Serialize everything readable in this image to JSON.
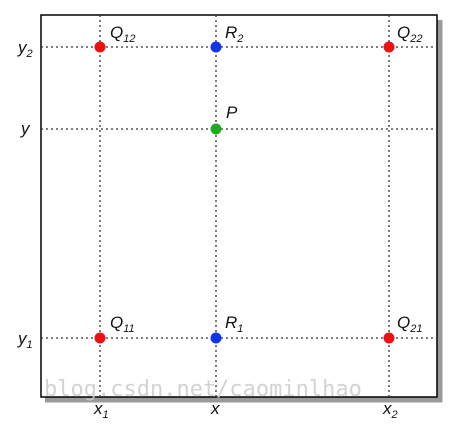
{
  "diagram": {
    "points": {
      "Q12": {
        "letter": "Q",
        "sub": "12",
        "color": "#ee1111"
      },
      "R2": {
        "letter": "R",
        "sub": "2",
        "color": "#1133ee"
      },
      "Q22": {
        "letter": "Q",
        "sub": "22",
        "color": "#ee1111"
      },
      "P": {
        "letter": "P",
        "sub": "",
        "color": "#22aa22"
      },
      "Q11": {
        "letter": "Q",
        "sub": "11",
        "color": "#ee1111"
      },
      "R1": {
        "letter": "R",
        "sub": "1",
        "color": "#1133ee"
      },
      "Q21": {
        "letter": "Q",
        "sub": "21",
        "color": "#ee1111"
      }
    },
    "axis_labels": {
      "y2": {
        "letter": "y",
        "sub": "2"
      },
      "y": {
        "letter": "y",
        "sub": ""
      },
      "y1": {
        "letter": "y",
        "sub": "1"
      },
      "x1": {
        "letter": "x",
        "sub": "1"
      },
      "x": {
        "letter": "x",
        "sub": ""
      },
      "x2": {
        "letter": "x",
        "sub": "2"
      }
    },
    "watermark": "blog.csdn.net/caominlhao",
    "colors": {
      "frame": "#000000",
      "grid": "#333333",
      "shadow": "#9a9a9a"
    }
  }
}
